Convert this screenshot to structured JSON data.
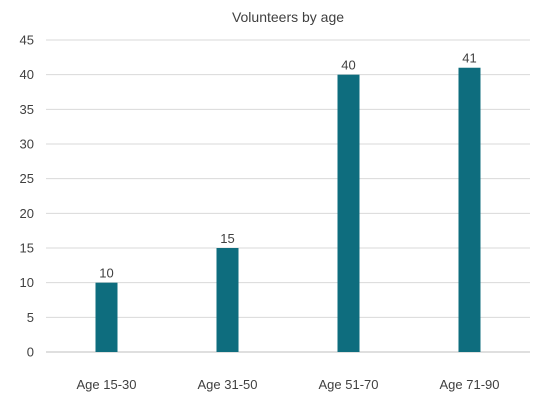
{
  "chart_data": {
    "type": "bar",
    "title": "Volunteers by age",
    "categories": [
      "Age 15-30",
      "Age 31-50",
      "Age 51-70",
      "Age 71-90"
    ],
    "values": [
      10,
      15,
      40,
      41
    ],
    "ylim": [
      0,
      45
    ],
    "yticks": [
      0,
      5,
      10,
      15,
      20,
      25,
      30,
      35,
      40,
      45
    ],
    "xlabel": "",
    "ylabel": "",
    "grid": true,
    "legend": "none",
    "bar_color": "#0e6d7e",
    "data_labels": true
  }
}
